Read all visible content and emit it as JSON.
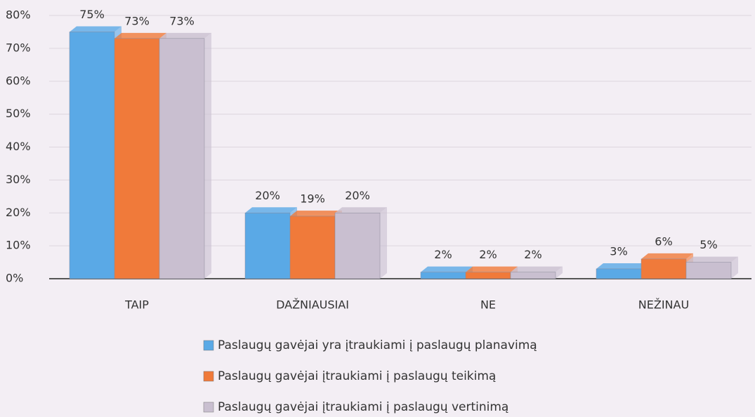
{
  "chart_data": {
    "type": "bar",
    "categories": [
      "TAIP",
      "DAŽNIAUSIAI",
      "NE",
      "NEŽINAU"
    ],
    "series": [
      {
        "name": "Paslaugų gavėjai yra įtraukiami į paslaugų planavimą",
        "color": "#5aa9e6",
        "values": [
          75,
          20,
          2,
          3
        ],
        "value_labels": [
          "75%",
          "20%",
          "2%",
          "3%"
        ]
      },
      {
        "name": "Paslaugų gavėjai įtraukiami į paslaugų teikimą",
        "color": "#f07a3a",
        "values": [
          73,
          19,
          2,
          6
        ],
        "value_labels": [
          "73%",
          "19%",
          "2%",
          "6%"
        ]
      },
      {
        "name": "Paslaugų gavėjai įtraukiami į paslaugų vertinimą",
        "color": "#c9bfd0",
        "values": [
          73,
          20,
          2,
          5
        ],
        "value_labels": [
          "73%",
          "20%",
          "2%",
          "5%"
        ]
      }
    ],
    "ylim": [
      0,
      80
    ],
    "yticks": [
      {
        "value": 0,
        "label": "0%"
      },
      {
        "value": 10,
        "label": "10%"
      },
      {
        "value": 20,
        "label": "20%"
      },
      {
        "value": 30,
        "label": "30%"
      },
      {
        "value": 40,
        "label": "40%"
      },
      {
        "value": 50,
        "label": "50%"
      },
      {
        "value": 60,
        "label": "60%"
      },
      {
        "value": 70,
        "label": "70%"
      },
      {
        "value": 80,
        "label": "80%"
      }
    ],
    "grid": true,
    "legend": "bottom"
  }
}
